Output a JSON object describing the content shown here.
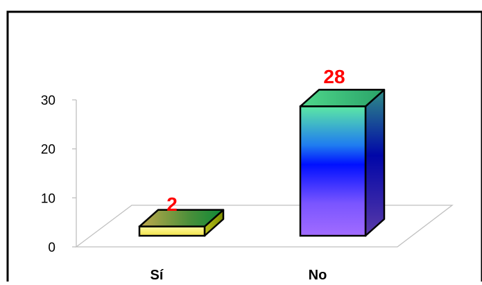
{
  "chart_data": {
    "type": "bar",
    "style": "3d-column",
    "categories": [
      "Sí",
      "No"
    ],
    "values": [
      2,
      28
    ],
    "title": "",
    "xlabel": "",
    "ylabel": "",
    "ylim": [
      0,
      30
    ],
    "yticks": [
      "0",
      "10",
      "20",
      "30"
    ],
    "data_labels": [
      "2",
      "28"
    ],
    "grid": false,
    "legend": "none",
    "colors": {
      "data_label": "#ff0000",
      "frame": "#000000",
      "floor": "#bfbfbf",
      "bar_outline": "#000000",
      "bar_1": {
        "top": [
          "#b8a84a",
          "#2e7d32",
          "#1b8f3a"
        ],
        "front": "#fff57a",
        "side": "#a8b000"
      },
      "bar_2": {
        "top": [
          "#5ddc9a",
          "#2aa36a"
        ],
        "front": [
          "#5ce6a0",
          "#0a14ff",
          "#a66cff"
        ],
        "side": [
          "#2f7f8a",
          "#0008b0",
          "#5a3fb0"
        ]
      }
    }
  }
}
